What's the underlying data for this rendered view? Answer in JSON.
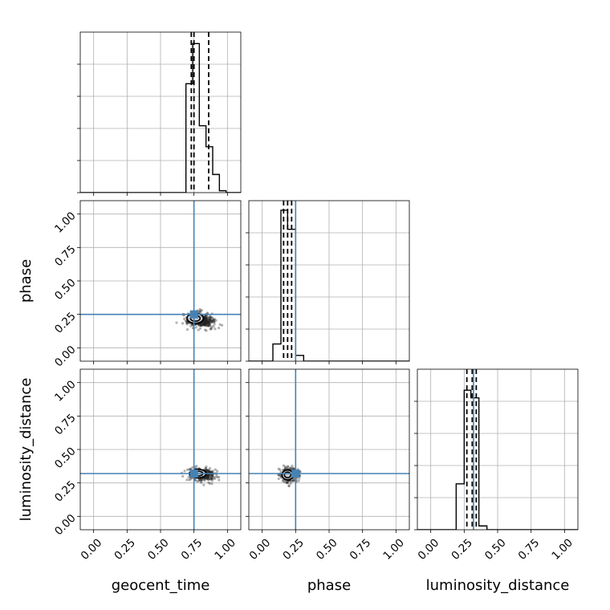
{
  "colors": {
    "truth": "#4682b4",
    "hist": "#000000",
    "grid": "#b0b0b0"
  },
  "chart_data": {
    "type": "corner",
    "title": "",
    "parameters": [
      "geocent_time",
      "phase",
      "luminosity_distance"
    ],
    "axis_range": [
      -0.1,
      1.1
    ],
    "ticks": [
      0.0,
      0.25,
      0.5,
      0.75,
      1.0
    ],
    "tick_labels": [
      "0.00",
      "0.25",
      "0.50",
      "0.75",
      "1.00"
    ],
    "grid": true,
    "truths": {
      "geocent_time": 0.75,
      "phase": 0.25,
      "luminosity_distance": 0.32
    },
    "histograms": {
      "geocent_time": {
        "bin_edges": [
          0.69,
          0.74,
          0.79,
          0.84,
          0.89,
          0.94,
          0.99,
          1.04
        ],
        "counts": [
          0.57,
          0.78,
          0.35,
          0.24,
          0.095,
          0.01,
          0.0
        ],
        "ymax": 0.84,
        "quantiles": [
          0.73,
          0.75,
          0.86
        ]
      },
      "phase": {
        "bin_edges": [
          0.08,
          0.14,
          0.19,
          0.25,
          0.31,
          0.36
        ],
        "counts": [
          0.09,
          0.79,
          0.69,
          0.03,
          0.0
        ],
        "ymax": 0.84,
        "quantiles": [
          0.16,
          0.19,
          0.22
        ]
      },
      "luminosity_distance": {
        "bin_edges": [
          0.19,
          0.25,
          0.3,
          0.36,
          0.42
        ],
        "counts": [
          0.24,
          0.73,
          0.69,
          0.02
        ],
        "ymax": 0.84,
        "quantiles": [
          0.27,
          0.31,
          0.34
        ]
      }
    },
    "scatter_panels": [
      {
        "x": "geocent_time",
        "y": "phase",
        "center": [
          0.76,
          0.22
        ],
        "spread": [
          0.06,
          0.035
        ],
        "tail": [
          0.1,
          -0.04
        ]
      },
      {
        "x": "geocent_time",
        "y": "luminosity_distance",
        "center": [
          0.78,
          0.32
        ],
        "spread": [
          0.06,
          0.03
        ],
        "tail": [
          0.08,
          -0.02
        ]
      },
      {
        "x": "phase",
        "y": "luminosity_distance",
        "center": [
          0.19,
          0.31
        ],
        "spread": [
          0.04,
          0.035
        ],
        "tail": [
          0.03,
          0.0
        ]
      }
    ]
  }
}
